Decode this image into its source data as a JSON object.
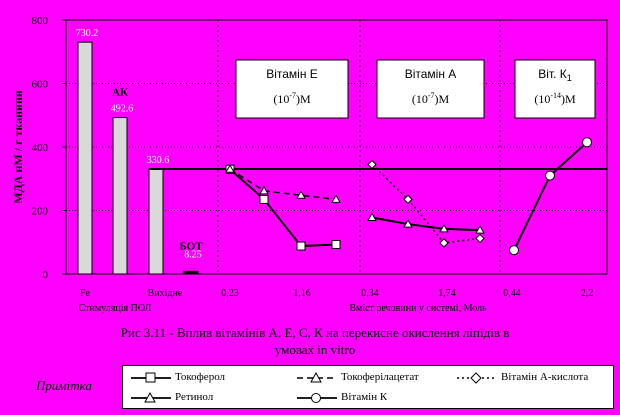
{
  "chart_data": {
    "type": "bar+line",
    "ylabel": "МДА нМ / г тканини",
    "ylim": [
      0,
      800
    ],
    "yticks": [
      0,
      200,
      400,
      600,
      800
    ],
    "xlabel": "Вміст речовини у системі, Моль",
    "bars": [
      {
        "x_label": "Fe",
        "value": 730.2,
        "value_label": "730.2",
        "name": ""
      },
      {
        "x_label": "",
        "value": 492.6,
        "value_label": "492.6",
        "name": "АК"
      },
      {
        "x_label": "Вихідне",
        "value": 330.6,
        "value_label": "330.6",
        "name": ""
      },
      {
        "x_label": "",
        "value": 8.25,
        "value_label": "8.25",
        "name": "БОТ"
      }
    ],
    "bar_group_label": "Стимуляція ПОЛ",
    "reference_line": 330.6,
    "panels": [
      {
        "title": "Вітамін Е",
        "conc_base": "(10",
        "conc_exp": "-7",
        "conc_unit": ")М"
      },
      {
        "title": "Вітамін А",
        "conc_base": "(10",
        "conc_exp": "-7",
        "conc_unit": ")М"
      },
      {
        "title": "Віт.  К",
        "title_sub": "1",
        "conc_base": "(10",
        "conc_exp": "-14",
        "conc_unit": ")М"
      }
    ],
    "x_ticks": [
      "0,23",
      "1,16",
      "0,34",
      "1,74",
      "0,44",
      "2,2"
    ],
    "series": [
      {
        "name": "Токоферол",
        "marker": "square",
        "dash": "solid",
        "points": [
          [
            0,
            330
          ],
          [
            1,
            235
          ],
          [
            2,
            88
          ],
          [
            3,
            93
          ]
        ]
      },
      {
        "name": "Токоферілацетат",
        "marker": "triangle",
        "dash": "dashed",
        "points": [
          [
            0,
            330
          ],
          [
            1,
            262
          ],
          [
            2,
            248
          ],
          [
            3,
            235
          ]
        ]
      },
      {
        "name": "Вітамін А-кислота",
        "marker": "diamond",
        "dash": "dotted",
        "points": [
          [
            0,
            345
          ],
          [
            1,
            235
          ],
          [
            2,
            98
          ],
          [
            3,
            112
          ]
        ]
      },
      {
        "name": "Ретинол",
        "marker": "triangle",
        "dash": "solid",
        "points": [
          [
            0,
            178
          ],
          [
            1,
            157
          ],
          [
            2,
            142
          ],
          [
            3,
            138
          ]
        ]
      },
      {
        "name": "Вітамін К",
        "marker": "circle",
        "dash": "solid",
        "points": [
          [
            0,
            75
          ],
          [
            1,
            310
          ],
          [
            2,
            415
          ]
        ]
      }
    ]
  },
  "caption": {
    "line1": "Рис  3.11 - Вплив  вітамінів А, Е, С, К на перекисне окислення ліпідів в",
    "line2": "умовах in vitro"
  },
  "legend": {
    "title": "Примітка",
    "items": [
      {
        "label": "Токоферол"
      },
      {
        "label": "Токоферілацетат"
      },
      {
        "label": "Вітамін А-кислота"
      },
      {
        "label": "Ретинол"
      },
      {
        "label": "Вітамін К"
      }
    ]
  },
  "colors": {
    "background": "#FF00FF",
    "bar_fill": "#D9D9D9",
    "grid": "#000000"
  }
}
